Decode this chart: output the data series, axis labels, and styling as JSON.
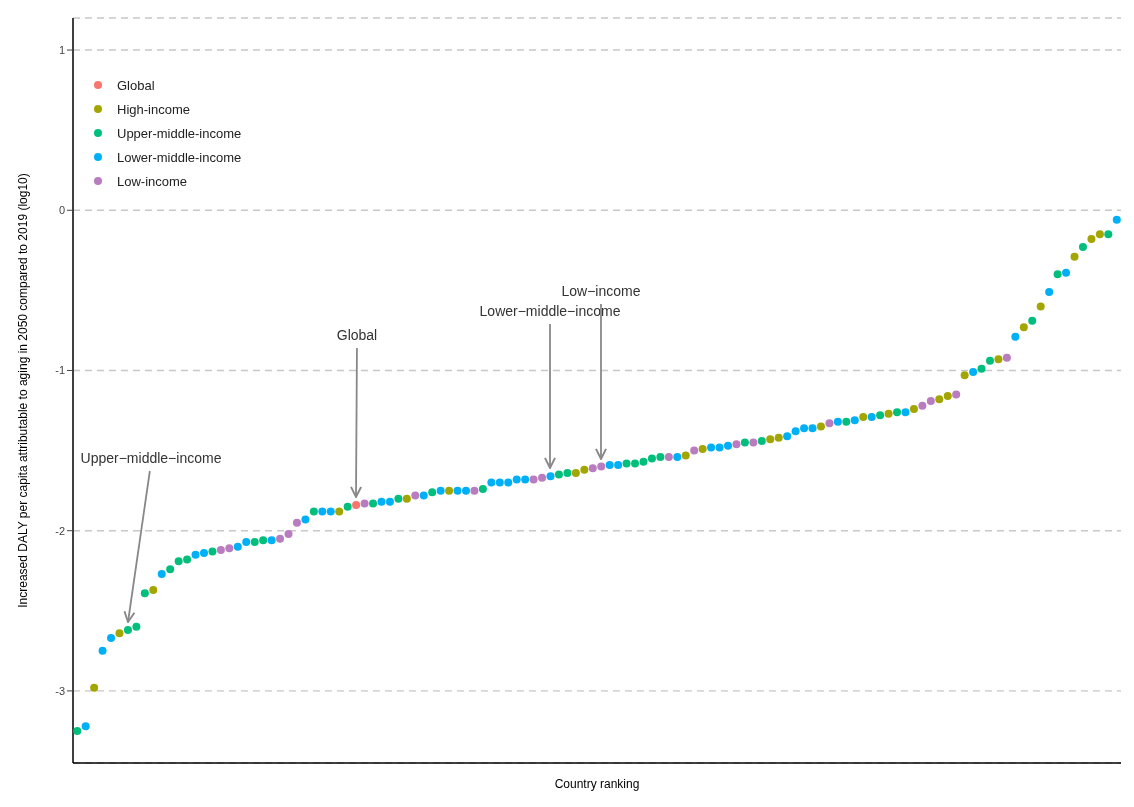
{
  "chart_data": {
    "type": "scatter",
    "xlabel": "Country ranking",
    "ylabel": "Increased DALY per capita attributable to aging in 2050 compared to 2019 (log10)",
    "categories": [
      null,
      null,
      null,
      null,
      null,
      null,
      null,
      null,
      null,
      null,
      null,
      null,
      null,
      null,
      null,
      null,
      null,
      null,
      null,
      null,
      null,
      null,
      null,
      null,
      null,
      null,
      null,
      null,
      null,
      null,
      null,
      null,
      null,
      null,
      null,
      null,
      null,
      null,
      null,
      null,
      null,
      null,
      null,
      null,
      null,
      null,
      null,
      null,
      null,
      null,
      null,
      null,
      null,
      null,
      null,
      null,
      null,
      null,
      null,
      null,
      null,
      null,
      null,
      null,
      null,
      null,
      null,
      null,
      null,
      null,
      null,
      null,
      null,
      null,
      null,
      null,
      null,
      null,
      null,
      null,
      null,
      null,
      null,
      null,
      null,
      null,
      null,
      null,
      null,
      null,
      null,
      null,
      null,
      null,
      null,
      null,
      null,
      null,
      null,
      null,
      null,
      null,
      null,
      null,
      null,
      null,
      null,
      null,
      null,
      null,
      null,
      null,
      null,
      null,
      null,
      null,
      null,
      null,
      null,
      null,
      null,
      null,
      null,
      null
    ],
    "series": [
      {
        "name": "Global",
        "color": "#f8766d",
        "values": [
          null,
          null,
          null,
          null,
          null,
          null,
          null,
          null,
          null,
          null,
          null,
          null,
          null,
          null,
          null,
          null,
          null,
          null,
          null,
          null,
          null,
          null,
          null,
          null,
          null,
          null,
          null,
          null,
          null,
          null,
          null,
          null,
          null,
          -1.84,
          null,
          null,
          null,
          null,
          null,
          null,
          null,
          null,
          null,
          null,
          null,
          null,
          null,
          null,
          null,
          null,
          null,
          null,
          null,
          null,
          null,
          null,
          null,
          null,
          null,
          null,
          null,
          null,
          null,
          null,
          null,
          null,
          null,
          null,
          null,
          null,
          null,
          null,
          null,
          null,
          null,
          null,
          null,
          null,
          null,
          null,
          null,
          null,
          null,
          null,
          null,
          null,
          null,
          null,
          null,
          null,
          null,
          null,
          null,
          null,
          null,
          null,
          null,
          null,
          null,
          null,
          null,
          null,
          null,
          null,
          null,
          null,
          null,
          null,
          null,
          null,
          null,
          null,
          null,
          null,
          null,
          null,
          null,
          null,
          null,
          null,
          null,
          null,
          null,
          null
        ]
      },
      {
        "name": "High-income",
        "color": "#a3a500",
        "values": [
          null,
          null,
          -2.98,
          null,
          null,
          -2.64,
          null,
          null,
          null,
          -2.37,
          null,
          null,
          null,
          null,
          null,
          null,
          null,
          null,
          null,
          null,
          null,
          null,
          null,
          null,
          null,
          null,
          null,
          null,
          null,
          null,
          null,
          -1.88,
          null,
          null,
          null,
          null,
          null,
          null,
          null,
          -1.8,
          null,
          null,
          null,
          null,
          -1.75,
          null,
          null,
          null,
          null,
          null,
          null,
          null,
          null,
          null,
          null,
          null,
          null,
          null,
          null,
          -1.64,
          -1.62,
          null,
          null,
          null,
          null,
          null,
          null,
          null,
          null,
          null,
          null,
          null,
          -1.53,
          null,
          -1.49,
          null,
          null,
          null,
          null,
          null,
          null,
          null,
          -1.43,
          -1.42,
          null,
          null,
          null,
          null,
          -1.35,
          null,
          null,
          null,
          null,
          -1.29,
          null,
          null,
          -1.27,
          null,
          null,
          -1.24,
          null,
          null,
          -1.18,
          -1.16,
          null,
          -1.03,
          null,
          null,
          null,
          -0.93,
          null,
          null,
          -0.73,
          null,
          -0.6,
          null,
          null,
          null,
          -0.29,
          null,
          -0.18,
          -0.15,
          null,
          null
        ]
      },
      {
        "name": "Upper-middle-income",
        "color": "#00bf7d",
        "values": [
          -3.25,
          null,
          null,
          null,
          null,
          null,
          -2.62,
          -2.6,
          -2.39,
          null,
          null,
          -2.24,
          -2.19,
          -2.18,
          null,
          null,
          -2.13,
          null,
          null,
          null,
          null,
          -2.07,
          -2.06,
          null,
          null,
          null,
          null,
          null,
          -1.88,
          null,
          null,
          null,
          -1.85,
          null,
          null,
          -1.83,
          null,
          null,
          -1.8,
          null,
          null,
          null,
          -1.76,
          null,
          null,
          null,
          null,
          null,
          -1.74,
          null,
          null,
          null,
          null,
          null,
          null,
          null,
          null,
          -1.65,
          -1.64,
          null,
          null,
          null,
          null,
          null,
          null,
          -1.58,
          -1.58,
          -1.57,
          -1.55,
          -1.54,
          null,
          null,
          null,
          null,
          null,
          null,
          null,
          null,
          null,
          -1.45,
          null,
          -1.44,
          null,
          null,
          null,
          null,
          null,
          null,
          null,
          null,
          null,
          -1.32,
          null,
          null,
          null,
          -1.28,
          null,
          -1.26,
          null,
          null,
          null,
          null,
          null,
          null,
          null,
          null,
          null,
          -0.99,
          -0.94,
          null,
          null,
          null,
          null,
          -0.69,
          null,
          null,
          -0.4,
          null,
          null,
          -0.23,
          null,
          null,
          -0.15,
          null
        ]
      },
      {
        "name": "Lower-middle-income",
        "color": "#00b0f6",
        "values": [
          null,
          -3.22,
          null,
          -2.75,
          -2.67,
          null,
          null,
          null,
          null,
          null,
          -2.27,
          null,
          null,
          null,
          -2.15,
          -2.14,
          null,
          null,
          null,
          -2.1,
          -2.07,
          null,
          null,
          -2.06,
          null,
          null,
          null,
          -1.93,
          null,
          -1.88,
          -1.88,
          null,
          null,
          null,
          null,
          null,
          -1.82,
          -1.82,
          null,
          null,
          null,
          -1.78,
          null,
          -1.75,
          null,
          -1.75,
          -1.75,
          null,
          null,
          -1.7,
          -1.7,
          -1.7,
          -1.68,
          -1.68,
          null,
          null,
          -1.66,
          null,
          null,
          null,
          null,
          null,
          null,
          -1.59,
          -1.59,
          null,
          null,
          null,
          null,
          null,
          null,
          -1.54,
          null,
          null,
          null,
          -1.48,
          -1.48,
          -1.47,
          null,
          null,
          null,
          null,
          null,
          null,
          -1.41,
          -1.38,
          -1.36,
          -1.36,
          null,
          null,
          -1.32,
          null,
          -1.31,
          null,
          -1.29,
          null,
          null,
          null,
          -1.26,
          null,
          null,
          null,
          null,
          null,
          null,
          null,
          -1.01,
          null,
          null,
          null,
          null,
          -0.79,
          null,
          null,
          null,
          -0.51,
          null,
          -0.39,
          null,
          null,
          null,
          null,
          null,
          -0.06
        ]
      },
      {
        "name": "Low-income",
        "color": "#b87cbf",
        "values": [
          null,
          null,
          null,
          null,
          null,
          null,
          null,
          null,
          null,
          null,
          null,
          null,
          null,
          null,
          null,
          null,
          null,
          -2.12,
          -2.11,
          null,
          null,
          null,
          null,
          null,
          -2.05,
          -2.02,
          -1.95,
          null,
          null,
          null,
          null,
          null,
          null,
          null,
          -1.83,
          null,
          null,
          null,
          null,
          null,
          -1.78,
          null,
          null,
          null,
          null,
          null,
          null,
          -1.75,
          null,
          null,
          null,
          null,
          null,
          null,
          -1.68,
          -1.67,
          null,
          null,
          null,
          null,
          null,
          -1.61,
          -1.6,
          null,
          null,
          null,
          null,
          null,
          null,
          null,
          -1.54,
          null,
          null,
          -1.5,
          null,
          null,
          null,
          null,
          -1.46,
          null,
          -1.45,
          null,
          null,
          null,
          null,
          null,
          null,
          null,
          null,
          -1.33,
          null,
          null,
          null,
          null,
          null,
          null,
          null,
          null,
          null,
          null,
          -1.22,
          -1.19,
          null,
          null,
          -1.15,
          null,
          null,
          null,
          null,
          null,
          -0.92,
          null,
          null,
          null,
          null,
          null,
          null,
          null,
          null,
          null,
          null,
          null,
          null,
          null
        ]
      }
    ],
    "ylim": [
      -3.45,
      1.2
    ],
    "yticks": [
      -3,
      -2,
      -1,
      0,
      1
    ],
    "grid": "y",
    "legend": "top left",
    "marker": "circle",
    "tick_labels": "y",
    "annotations": [
      "Upper−middle−income",
      "Global",
      "Lower−middle−income",
      "Low−income"
    ]
  }
}
